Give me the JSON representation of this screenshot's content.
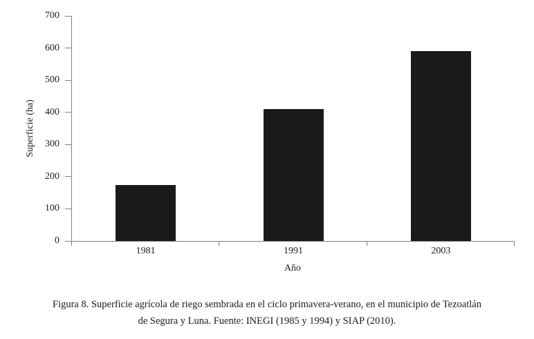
{
  "figure": {
    "caption_lines": [
      "Figura 8. Superficie agrícola de riego sembrada en el ciclo primavera-verano, en el municipio de Tezoatlán",
      "de Segura y Luna. Fuente: INEGI (1985 y 1994) y SIAP (2010)."
    ]
  },
  "chart_data": {
    "type": "bar",
    "categories": [
      "1981",
      "1991",
      "2003"
    ],
    "values": [
      175,
      410,
      590
    ],
    "title": "",
    "xlabel": "Año",
    "ylabel": "Superficie (ha)",
    "ylim": [
      0,
      700
    ],
    "ytick_step": 100,
    "grid": false,
    "legend": false,
    "bar_color": "#1a1a1a",
    "axis_color": "#7f7f7f",
    "text_color": "#1a1a1a"
  }
}
